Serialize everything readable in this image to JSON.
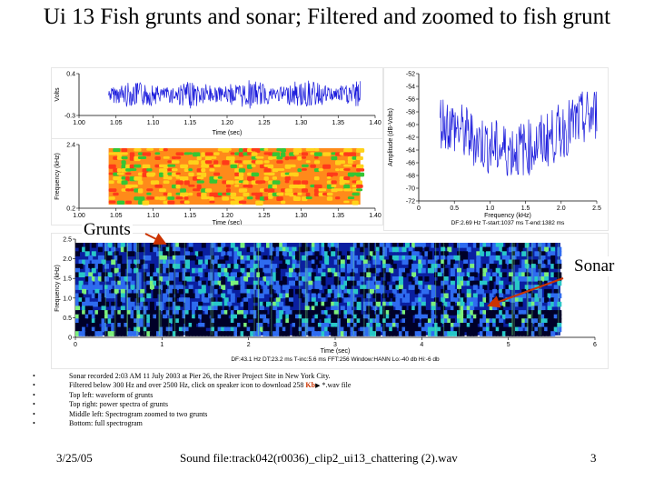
{
  "slide": {
    "title": "Ui 13 Fish grunts and sonar; Filtered and zoomed to fish grunt",
    "annotations": {
      "grunts": "Grunts",
      "sonar": "Sonar"
    },
    "footer": {
      "date": "3/25/05",
      "sound_file": "Sound file:track042(r0036)_clip2_ui13_chattering (2).wav",
      "page": "3"
    },
    "bullets": [
      {
        "text": "Sonar recorded 2:03 AM 11 July 2003 at Pier 26, the River Project Site in New York City."
      },
      {
        "text_before": "Filtered below 300 Hz and over 2500 Hz, click on speaker icon to download 258 ",
        "highlight": "Kb",
        "text_after": " *.wav file"
      },
      {
        "text": "Top left: waveform of grunts"
      },
      {
        "text": "Top right: power spectra of grunts"
      },
      {
        "text": "Middle left: Spectrogram zoomed to two grunts"
      },
      {
        "text": "Bottom: full spectrogram"
      }
    ]
  },
  "chart_data": [
    {
      "type": "line",
      "name": "waveform",
      "xlabel": "Time (sec)",
      "ylabel": "Volts",
      "xlim": [
        1.0,
        1.4
      ],
      "ylim": [
        -0.3,
        0.4
      ],
      "x_ticks": [
        "1.00",
        "1.05",
        "1.10",
        "1.15",
        "1.20",
        "1.25",
        "1.30",
        "1.35",
        "1.40"
      ],
      "y_ticks": [
        "0.4",
        "-0.3"
      ],
      "signal_start": 1.04,
      "signal_end": 1.38,
      "color": "#1a1adc"
    },
    {
      "type": "heatmap",
      "name": "zoomed-spectrogram",
      "xlabel": "Time (sec)",
      "ylabel": "Frequency (kHz)",
      "xlim": [
        1.0,
        1.4
      ],
      "ylim": [
        0.2,
        2.4
      ],
      "x_ticks": [
        "1.00",
        "1.05",
        "1.10",
        "1.15",
        "1.20",
        "1.25",
        "1.30",
        "1.35",
        "1.40"
      ],
      "y_ticks": [
        "2.4",
        "0.2"
      ],
      "signal_start": 1.04,
      "signal_end": 1.38,
      "colors": [
        "#ff8a1a",
        "#ffd21a",
        "#ff3a1a",
        "#34c634"
      ]
    },
    {
      "type": "line",
      "name": "power-spectrum",
      "xlabel": "Frequency (kHz)",
      "ylabel": "Amplitude (dB-Volts)",
      "xlim": [
        0,
        2.5
      ],
      "ylim": [
        -72,
        -52
      ],
      "x_ticks": [
        "0",
        "0.5",
        "1.0",
        "1.5",
        "2.0",
        "2.5"
      ],
      "y_ticks": [
        "-52",
        "-54",
        "-56",
        "-58",
        "-60",
        "-62",
        "-64",
        "-66",
        "-68",
        "-70",
        "-72"
      ],
      "signal_start": 0.3,
      "signal_end": 2.5,
      "info": "DF:2.69 Hz    T-start:1037 ms    T-end:1382 ms",
      "color": "#1a1adc"
    },
    {
      "type": "heatmap",
      "name": "full-spectrogram",
      "xlabel": "Time (sec)",
      "ylabel": "Frequency (kHz)",
      "xlim": [
        0,
        6
      ],
      "ylim": [
        0,
        2.5
      ],
      "x_ticks": [
        "0",
        "1",
        "2",
        "3",
        "4",
        "5",
        "6"
      ],
      "y_ticks": [
        "2.5",
        "2.0",
        "1.5",
        "1.0",
        "0.5",
        "0"
      ],
      "signal_start": 0,
      "signal_end": 5.6,
      "info": "DF:43.1 Hz    DT:23.2 ms    T-inc:5.6 ms    FFT:256    Window:HANN    Lo:-40 db    Hi:-6 db",
      "colors": [
        "#000028",
        "#0a1fa0",
        "#2f6cf0",
        "#28c8c8",
        "#7cf07c"
      ]
    }
  ]
}
